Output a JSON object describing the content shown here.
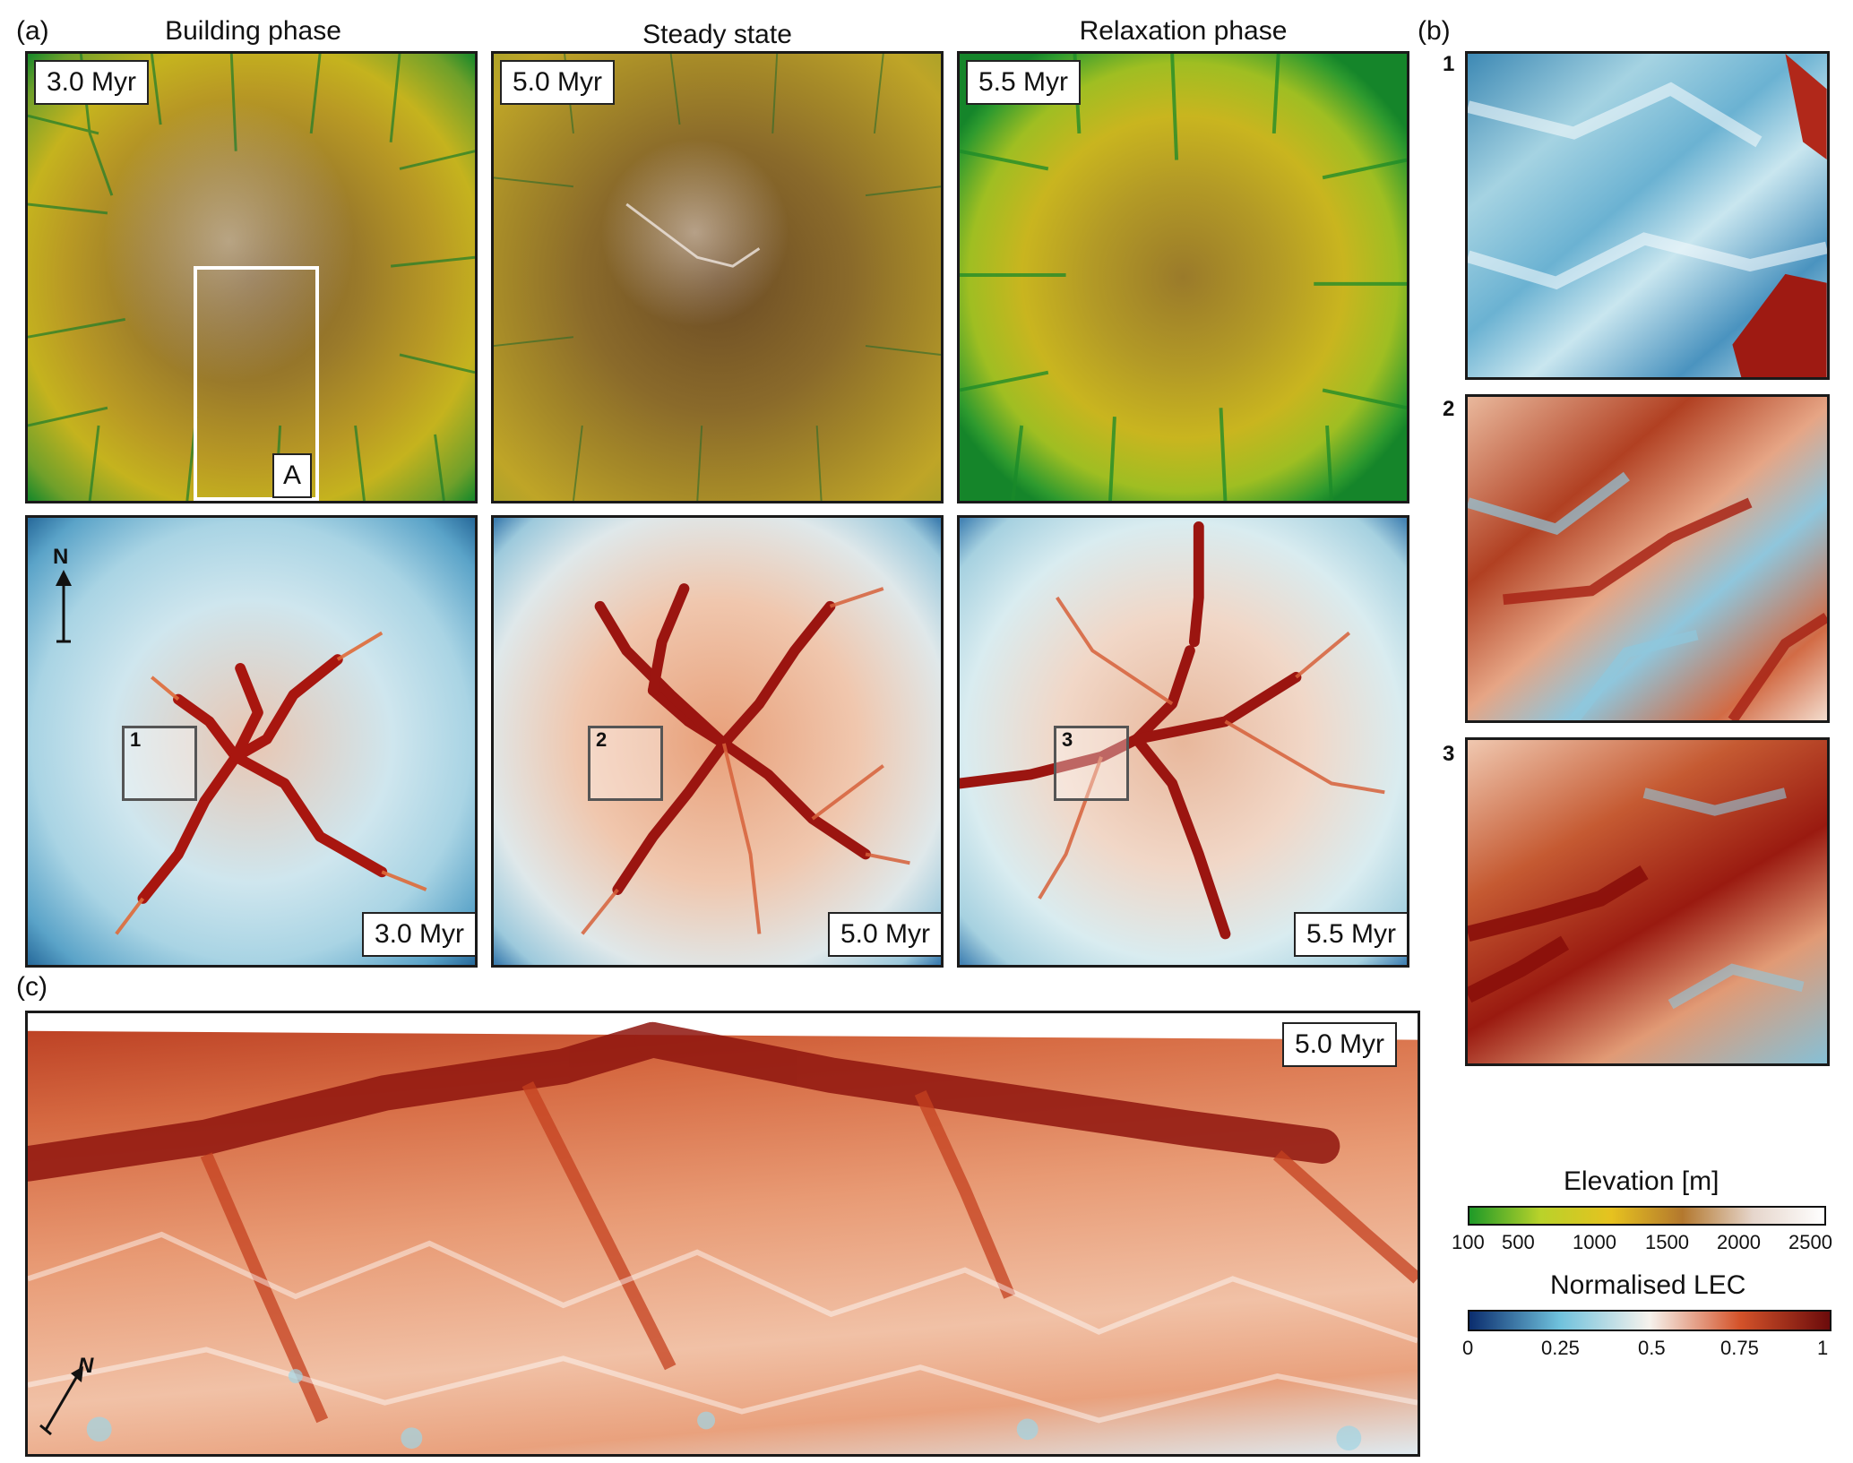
{
  "panels": {
    "a_label": "(a)",
    "b_label": "(b)",
    "c_label": "(c)"
  },
  "columns": {
    "building": "Building phase",
    "steady": "Steady state",
    "relaxation": "Relaxation phase"
  },
  "time_labels": {
    "t1": "3.0 Myr",
    "t2": "5.0 Myr",
    "t3": "5.5 Myr",
    "perspective": "5.0 Myr"
  },
  "annotations": {
    "box_a": "A",
    "north": "N",
    "zoom_1": "1",
    "zoom_2": "2",
    "zoom_3": "3"
  },
  "colorbars": {
    "elevation": {
      "title": "Elevation [m]",
      "ticks": [
        "100",
        "500",
        "1000",
        "1500",
        "2000",
        "2500"
      ],
      "colors": [
        "#1e9a28",
        "#b9d22a",
        "#e6c21f",
        "#b3782e",
        "#e6d6cc",
        "#ffffff"
      ]
    },
    "lec": {
      "title": "Normalised LEC",
      "ticks": [
        "0",
        "0.25",
        "0.5",
        "0.75",
        "1"
      ],
      "colors": [
        "#0b2d6e",
        "#6fc1dc",
        "#f6f2ec",
        "#d4532a",
        "#6b0b0b"
      ]
    }
  }
}
